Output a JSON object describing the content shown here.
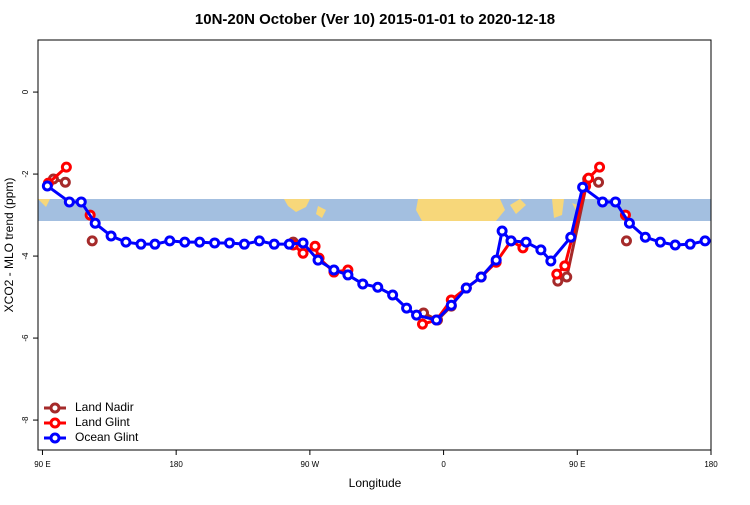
{
  "chart_data": {
    "type": "line",
    "title": "10N-20N October (Ver 10)   2015-01-01 to 2020-12-18",
    "x_label": "Longitude",
    "y_label": "XCO2 - MLO trend (ppm)",
    "xlim": [
      87,
      540
    ],
    "ylim": [
      -8.73,
      1.27
    ],
    "xticks": [
      {
        "value": 90,
        "label": "90 E"
      },
      {
        "value": 180,
        "label": "180"
      },
      {
        "value": 270,
        "label": "90 W"
      },
      {
        "value": 360,
        "label": "0"
      },
      {
        "value": 450,
        "label": "90 E"
      },
      {
        "value": 540,
        "label": "180"
      }
    ],
    "yticks": [
      -8,
      -6,
      -4,
      -2,
      0
    ],
    "legend": "bottom-left",
    "series": [
      {
        "name": "Land Nadir",
        "color": "#a52a2a",
        "x": [
          97.4,
          105.4,
          null,
          123.5,
          null,
          258.8,
          null,
          346.5,
          355.9,
          365.2,
          null,
          436.9,
          442.9,
          457.0,
          464.3,
          null,
          483.1
        ],
        "values": [
          -2.12,
          -2.2,
          null,
          -3.63,
          null,
          -3.66,
          null,
          -5.39,
          -5.56,
          -5.22,
          null,
          -4.61,
          -4.51,
          -2.12,
          -2.2,
          null,
          -3.63
        ]
      },
      {
        "name": "Land Glint",
        "color": "#ff0000",
        "x": [
          94.0,
          106.1,
          null,
          122.1,
          null,
          258.8,
          265.4,
          273.5,
          276.2,
          286.2,
          295.6,
          null,
          345.8,
          355.2,
          365.2,
          375.3,
          385.3,
          395.4,
          405.4,
          413.4,
          null,
          436.2,
          441.6,
          455.6,
          457.6,
          465.0,
          null,
          482.4
        ],
        "values": [
          -2.22,
          -1.83,
          null,
          -3.0,
          null,
          -3.73,
          -3.93,
          -3.76,
          -4.05,
          -4.39,
          -4.34,
          null,
          -5.66,
          -5.56,
          -5.07,
          -4.78,
          -4.51,
          -4.15,
          -3.63,
          -3.8,
          null,
          -4.44,
          -4.24,
          -2.29,
          -2.1,
          -1.83,
          null,
          -3.0
        ]
      },
      {
        "name": "Ocean Glint",
        "color": "#0000ff",
        "x": [
          93.3,
          108.1,
          116.1,
          125.5,
          136.2,
          146.2,
          156.3,
          165.7,
          175.7,
          185.8,
          195.8,
          205.9,
          215.9,
          225.9,
          236.0,
          246.0,
          256.1,
          265.4,
          275.5,
          286.2,
          295.6,
          305.6,
          315.7,
          325.7,
          335.1,
          341.8,
          355.2,
          365.2,
          375.3,
          385.3,
          395.4,
          399.4,
          405.4,
          415.5,
          425.5,
          432.2,
          445.6,
          453.6,
          467.0,
          475.7,
          485.1,
          495.8,
          505.9,
          515.9,
          526.0,
          536.0
        ],
        "values": [
          -2.29,
          -2.68,
          -2.68,
          -3.2,
          -3.51,
          -3.66,
          -3.71,
          -3.71,
          -3.63,
          -3.66,
          -3.66,
          -3.68,
          -3.68,
          -3.71,
          -3.63,
          -3.71,
          -3.71,
          -3.68,
          -4.1,
          -4.34,
          -4.46,
          -4.68,
          -4.76,
          -4.95,
          -5.27,
          -5.44,
          -5.56,
          -5.2,
          -4.78,
          -4.51,
          -4.1,
          -3.39,
          -3.63,
          -3.66,
          -3.85,
          -4.12,
          -3.54,
          -2.32,
          -2.68,
          -2.68,
          -3.2,
          -3.54,
          -3.66,
          -3.73,
          -3.71,
          -3.63
        ]
      }
    ]
  }
}
